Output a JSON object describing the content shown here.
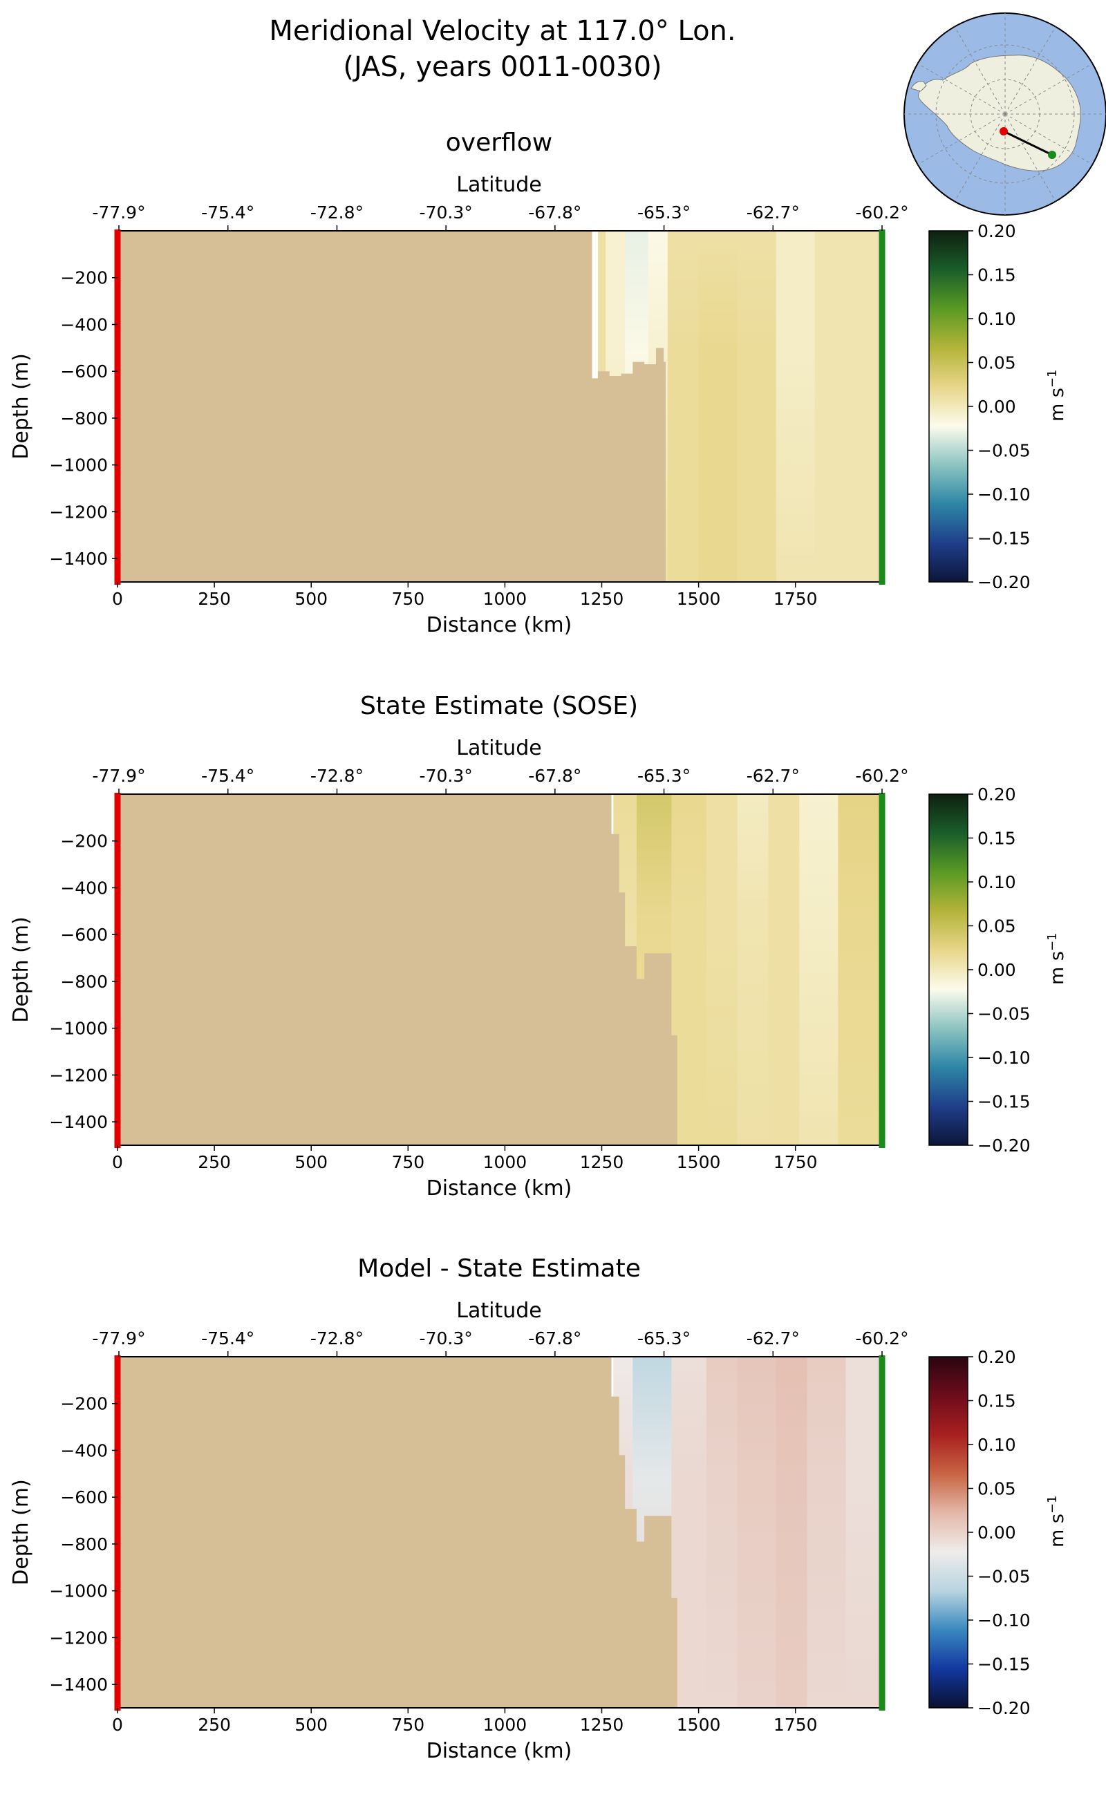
{
  "figure": {
    "title_line1": "Meridional Velocity at 117.0° Lon.",
    "title_line2": "(JAS, years 0011-0030)"
  },
  "map_inset": {
    "ocean_color": "#9bbbe6",
    "land_color": "#efefe0",
    "start_marker_color": "#e00000",
    "end_marker_color": "#1a8a1a"
  },
  "colors": {
    "bathymetry": "#d6bf96",
    "start_edge": "#e00000",
    "end_edge": "#1a8a1a"
  },
  "panels": [
    {
      "title": "overflow",
      "ylabel": "Depth (m)",
      "xlabel": "Distance (km)",
      "lat_label": "Latitude",
      "colorbar_label": "m s",
      "colorbar_label_sup": "−1",
      "colormap": [
        "#0c1538",
        "#1f3f8a",
        "#2e86a6",
        "#8cc4c2",
        "#fcfbec",
        "#e8d68a",
        "#b4b43a",
        "#5a9a24",
        "#1a5e2a",
        "#0e2010"
      ]
    },
    {
      "title": "State Estimate (SOSE)",
      "ylabel": "Depth (m)",
      "xlabel": "Distance (km)",
      "lat_label": "Latitude",
      "colorbar_label": "m s",
      "colorbar_label_sup": "−1",
      "colormap": [
        "#0c1538",
        "#1f3f8a",
        "#2e86a6",
        "#8cc4c2",
        "#fcfbec",
        "#e8d68a",
        "#b4b43a",
        "#5a9a24",
        "#1a5e2a",
        "#0e2010"
      ]
    },
    {
      "title": "Model - State Estimate",
      "ylabel": "Depth (m)",
      "xlabel": "Distance (km)",
      "lat_label": "Latitude",
      "colorbar_label": "m s",
      "colorbar_label_sup": "−1",
      "colormap": [
        "#0a1030",
        "#1338a0",
        "#3a88c0",
        "#b8d4e0",
        "#efeceb",
        "#e3b8a8",
        "#c86444",
        "#a82020",
        "#6e0c1c",
        "#2a0510"
      ]
    }
  ],
  "chart_data": [
    {
      "type": "heatmap",
      "title": "overflow",
      "xlabel": "Distance (km)",
      "ylabel": "Depth (m)",
      "top_xlabel": "Latitude",
      "xlim": [
        0,
        1970
      ],
      "ylim": [
        -1500,
        0
      ],
      "x_ticks": [
        0,
        250,
        500,
        750,
        1000,
        1250,
        1500,
        1750
      ],
      "y_ticks": [
        -200,
        -400,
        -600,
        -800,
        -1000,
        -1200,
        -1400
      ],
      "lat_ticks": [
        "-77.9°",
        "-75.4°",
        "-72.8°",
        "-70.3°",
        "-67.8°",
        "-65.3°",
        "-62.7°",
        "-60.2°"
      ],
      "colorbar_ticks": [
        "0.20",
        "0.15",
        "0.10",
        "0.05",
        "0.00",
        "−0.05",
        "−0.10",
        "−0.15",
        "−0.20"
      ],
      "clim": [
        -0.2,
        0.2
      ],
      "colorbar_label": "m s^-1",
      "bathymetry_depth": [
        [
          1225,
          -630
        ],
        [
          1240,
          -600
        ],
        [
          1270,
          -620
        ],
        [
          1300,
          -610
        ],
        [
          1330,
          -560
        ],
        [
          1360,
          -570
        ],
        [
          1390,
          -500
        ],
        [
          1410,
          -560
        ],
        [
          1415,
          -1500
        ]
      ],
      "velocity_columns": [
        {
          "x": [
            1240,
            1260
          ],
          "v": [
            0.01,
            0.01,
            0.01
          ]
        },
        {
          "x": [
            1260,
            1310
          ],
          "v": [
            -0.01,
            -0.01,
            0.01
          ]
        },
        {
          "x": [
            1310,
            1370
          ],
          "v": [
            -0.03,
            -0.02,
            0.01
          ]
        },
        {
          "x": [
            1370,
            1420
          ],
          "v": [
            -0.02,
            -0.01,
            0.01
          ]
        },
        {
          "x": [
            1420,
            1500
          ],
          "v": [
            0.01,
            0.015,
            0.015
          ]
        },
        {
          "x": [
            1500,
            1600
          ],
          "v": [
            0.01,
            0.02,
            0.02
          ]
        },
        {
          "x": [
            1600,
            1700
          ],
          "v": [
            0.01,
            0.015,
            0.015
          ]
        },
        {
          "x": [
            1700,
            1800
          ],
          "v": [
            -0.005,
            -0.005,
            0.005
          ]
        },
        {
          "x": [
            1800,
            1970
          ],
          "v": [
            0.005,
            0.005,
            0.005
          ]
        }
      ]
    },
    {
      "type": "heatmap",
      "title": "State Estimate (SOSE)",
      "xlabel": "Distance (km)",
      "ylabel": "Depth (m)",
      "top_xlabel": "Latitude",
      "xlim": [
        0,
        1970
      ],
      "ylim": [
        -1500,
        0
      ],
      "x_ticks": [
        0,
        250,
        500,
        750,
        1000,
        1250,
        1500,
        1750
      ],
      "y_ticks": [
        -200,
        -400,
        -600,
        -800,
        -1000,
        -1200,
        -1400
      ],
      "lat_ticks": [
        "-77.9°",
        "-75.4°",
        "-72.8°",
        "-70.3°",
        "-67.8°",
        "-65.3°",
        "-62.7°",
        "-60.2°"
      ],
      "colorbar_ticks": [
        "0.20",
        "0.15",
        "0.10",
        "0.05",
        "0.00",
        "−0.05",
        "−0.10",
        "−0.15",
        "−0.20"
      ],
      "clim": [
        -0.2,
        0.2
      ],
      "colorbar_label": "m s^-1",
      "bathymetry_depth": [
        [
          1275,
          -170
        ],
        [
          1295,
          -420
        ],
        [
          1310,
          -650
        ],
        [
          1340,
          -790
        ],
        [
          1360,
          -680
        ],
        [
          1430,
          -1030
        ],
        [
          1445,
          -1500
        ]
      ],
      "velocity_columns": [
        {
          "x": [
            1280,
            1340
          ],
          "v": [
            0.015,
            0.01,
            0.005
          ]
        },
        {
          "x": [
            1340,
            1430
          ],
          "v": [
            0.04,
            0.02,
            0.01
          ]
        },
        {
          "x": [
            1430,
            1520
          ],
          "v": [
            0.02,
            0.015,
            0.015
          ]
        },
        {
          "x": [
            1520,
            1600
          ],
          "v": [
            0.01,
            0.01,
            0.015
          ]
        },
        {
          "x": [
            1600,
            1680
          ],
          "v": [
            -0.003,
            0.005,
            0.01
          ]
        },
        {
          "x": [
            1680,
            1760
          ],
          "v": [
            0.01,
            0.01,
            0.01
          ]
        },
        {
          "x": [
            1760,
            1860
          ],
          "v": [
            -0.01,
            -0.005,
            0.005
          ]
        },
        {
          "x": [
            1860,
            1970
          ],
          "v": [
            0.025,
            0.02,
            0.015
          ]
        }
      ]
    },
    {
      "type": "heatmap",
      "title": "Model - State Estimate",
      "xlabel": "Distance (km)",
      "ylabel": "Depth (m)",
      "top_xlabel": "Latitude",
      "xlim": [
        0,
        1970
      ],
      "ylim": [
        -1500,
        0
      ],
      "x_ticks": [
        0,
        250,
        500,
        750,
        1000,
        1250,
        1500,
        1750
      ],
      "y_ticks": [
        -200,
        -400,
        -600,
        -800,
        -1000,
        -1200,
        -1400
      ],
      "lat_ticks": [
        "-77.9°",
        "-75.4°",
        "-72.8°",
        "-70.3°",
        "-67.8°",
        "-65.3°",
        "-62.7°",
        "-60.2°"
      ],
      "colorbar_ticks": [
        "0.20",
        "0.15",
        "0.10",
        "0.05",
        "0.00",
        "−0.05",
        "−0.10",
        "−0.15",
        "−0.20"
      ],
      "clim": [
        -0.2,
        0.2
      ],
      "colorbar_label": "m s^-1",
      "bathymetry_depth": [
        [
          1275,
          -170
        ],
        [
          1295,
          -420
        ],
        [
          1310,
          -650
        ],
        [
          1340,
          -790
        ],
        [
          1360,
          -680
        ],
        [
          1430,
          -1030
        ],
        [
          1445,
          -1500
        ]
      ],
      "velocity_columns": [
        {
          "x": [
            1280,
            1330
          ],
          "v": [
            -0.02,
            -0.01,
            0.0
          ]
        },
        {
          "x": [
            1330,
            1430
          ],
          "v": [
            -0.06,
            -0.03,
            0.0
          ]
        },
        {
          "x": [
            1430,
            1520
          ],
          "v": [
            -0.01,
            -0.005,
            -0.005
          ]
        },
        {
          "x": [
            1520,
            1600
          ],
          "v": [
            0.005,
            0.0,
            -0.005
          ]
        },
        {
          "x": [
            1600,
            1700
          ],
          "v": [
            0.01,
            0.005,
            0.0
          ]
        },
        {
          "x": [
            1700,
            1780
          ],
          "v": [
            0.015,
            0.01,
            0.005
          ]
        },
        {
          "x": [
            1780,
            1880
          ],
          "v": [
            0.005,
            0.0,
            -0.005
          ]
        },
        {
          "x": [
            1880,
            1970
          ],
          "v": [
            -0.01,
            -0.01,
            -0.005
          ]
        }
      ]
    }
  ]
}
